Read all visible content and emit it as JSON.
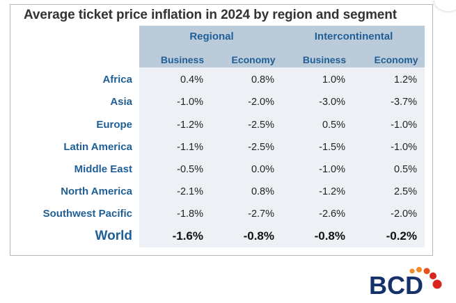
{
  "chart_data": {
    "type": "table",
    "title": "Average ticket price inflation in 2024 by region and segment",
    "groups": [
      "Regional",
      "Intercontinental"
    ],
    "columns": [
      "Business",
      "Economy",
      "Business",
      "Economy"
    ],
    "rows": [
      {
        "region": "Africa",
        "values": [
          "0.4%",
          "0.8%",
          "1.0%",
          "1.2%"
        ]
      },
      {
        "region": "Asia",
        "values": [
          "-1.0%",
          "-2.0%",
          "-3.0%",
          "-3.7%"
        ]
      },
      {
        "region": "Europe",
        "values": [
          "-1.2%",
          "-2.5%",
          "0.5%",
          "-1.0%"
        ]
      },
      {
        "region": "Latin America",
        "values": [
          "-1.1%",
          "-2.5%",
          "-1.5%",
          "-1.0%"
        ]
      },
      {
        "region": "Middle East",
        "values": [
          "-0.5%",
          "0.0%",
          "-1.0%",
          "0.5%"
        ]
      },
      {
        "region": "North America",
        "values": [
          "-2.1%",
          "0.8%",
          "-1.2%",
          "2.5%"
        ]
      },
      {
        "region": "Southwest Pacific",
        "values": [
          "-1.8%",
          "-2.7%",
          "-2.6%",
          "-2.0%"
        ]
      },
      {
        "region": "World",
        "values": [
          "-1.6%",
          "-0.8%",
          "-0.8%",
          "-0.2%"
        ]
      }
    ]
  },
  "logo": {
    "text": "BCD",
    "dot_colors": [
      "#f28c28",
      "#e94e1b",
      "#d7261e",
      "#b71c1c"
    ],
    "text_color": "#15316b"
  },
  "colors": {
    "header_band": "#bccbd9",
    "body_band": "#edf1f5",
    "label_blue": "#1f5f96"
  }
}
